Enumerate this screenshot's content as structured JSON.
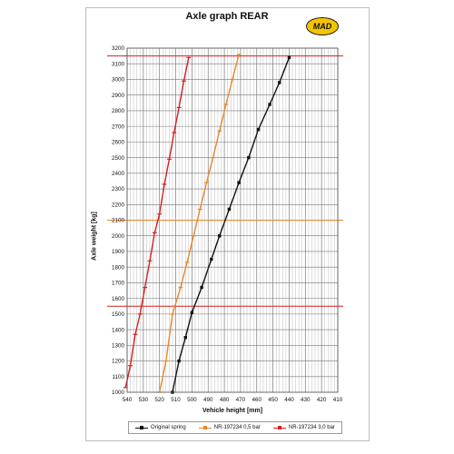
{
  "chart_data": {
    "type": "line",
    "title": "Axle graph REAR",
    "logo_text": "MAD",
    "xlabel": "Vehicle height [mm]",
    "ylabel": "Axle weight [kg]",
    "xlim": [
      540,
      410
    ],
    "ylim": [
      1000,
      3200
    ],
    "x_ticks": [
      540,
      530,
      520,
      510,
      500,
      490,
      480,
      470,
      460,
      450,
      440,
      430,
      420,
      410
    ],
    "x_tick_labels": [
      "540",
      "530",
      "520",
      "510",
      "500",
      "490",
      "480",
      "470",
      "460",
      "450",
      "440",
      "430",
      "420",
      "410"
    ],
    "y_ticks": [
      1000,
      1100,
      1200,
      1300,
      1400,
      1500,
      1600,
      1700,
      1800,
      1900,
      2000,
      2100,
      2200,
      2300,
      2400,
      2500,
      2600,
      2700,
      2800,
      2900,
      3000,
      3100,
      3200
    ],
    "y_tick_labels": [
      "1000",
      "1100",
      "1200",
      "1300",
      "1400",
      "1500",
      "1600",
      "1700",
      "1800",
      "1900",
      "2000",
      "2100",
      "2200",
      "2300",
      "2400",
      "2500",
      "2600",
      "2700",
      "2800",
      "2900",
      "3000",
      "3100",
      "3200"
    ],
    "grid": true,
    "reference_lines": [
      {
        "y": 3150,
        "color": "#d42020"
      },
      {
        "y": 2100,
        "color": "#e8882c"
      },
      {
        "y": 1550,
        "color": "#d42020"
      }
    ],
    "legend_position": "bottom",
    "series": [
      {
        "name": "Original spring",
        "color": "#111111",
        "marker": "square",
        "points": [
          [
            512,
            1000
          ],
          [
            508,
            1200
          ],
          [
            504,
            1350
          ],
          [
            500,
            1510
          ],
          [
            494,
            1670
          ],
          [
            488,
            1850
          ],
          [
            483,
            2000
          ],
          [
            477,
            2170
          ],
          [
            471,
            2340
          ],
          [
            465,
            2500
          ],
          [
            459,
            2680
          ],
          [
            452,
            2840
          ],
          [
            446,
            2980
          ],
          [
            440,
            3140
          ]
        ]
      },
      {
        "name": "NR-197234 0,5 bar",
        "color": "#e8882c",
        "marker": "tick",
        "points": [
          [
            520,
            1000
          ],
          [
            516,
            1200
          ],
          [
            512,
            1500
          ],
          [
            507,
            1670
          ],
          [
            503,
            1830
          ],
          [
            499,
            2000
          ],
          [
            495,
            2170
          ],
          [
            491,
            2340
          ],
          [
            487,
            2500
          ],
          [
            483,
            2670
          ],
          [
            479,
            2840
          ],
          [
            475,
            3000
          ],
          [
            471,
            3160
          ]
        ]
      },
      {
        "name": "NR-197234 3,0 bar",
        "color": "#d42020",
        "marker": "tick",
        "points": [
          [
            541,
            1030
          ],
          [
            538,
            1170
          ],
          [
            535,
            1370
          ],
          [
            532,
            1500
          ],
          [
            529,
            1670
          ],
          [
            526,
            1840
          ],
          [
            523,
            2020
          ],
          [
            520,
            2140
          ],
          [
            517,
            2330
          ],
          [
            514,
            2490
          ],
          [
            511,
            2660
          ],
          [
            508,
            2820
          ],
          [
            505,
            2990
          ],
          [
            502,
            3140
          ]
        ]
      }
    ]
  }
}
